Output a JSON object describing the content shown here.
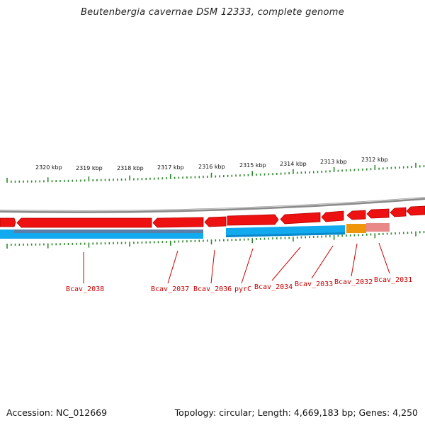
{
  "title": "Beutenbergia cavernae DSM 12333, complete genome",
  "footer": {
    "accession": "Accession: NC_012669",
    "summary": "Topology: circular; Length: 4,669,183 bp; Genes: 4,250"
  },
  "colors": {
    "gene_forward": "#ee1111",
    "gene_forward_dark": "#b00000",
    "gene_pink": "#e88888",
    "gene_orange": "#f0960a",
    "cds_blue": "#12aaee",
    "cds_blue_dark": "#0a88cc",
    "label_red": "#cc0000",
    "tick_green": "#2a8a2a",
    "backbone_gray": "#8a8a8a"
  },
  "scale_labels": [
    "2320 kbp",
    "2319 kbp",
    "2318 kbp",
    "2317 kbp",
    "2316 kbp",
    "2315 kbp",
    "2314 kbp",
    "2313 kbp",
    "2312 kbp"
  ],
  "gene_labels": [
    "Bcav_2038",
    "Bcav_2037",
    "Bcav_2036",
    "pyrC",
    "Bcav_2034",
    "Bcav_2033",
    "Bcav_2032",
    "Bcav_2031"
  ]
}
